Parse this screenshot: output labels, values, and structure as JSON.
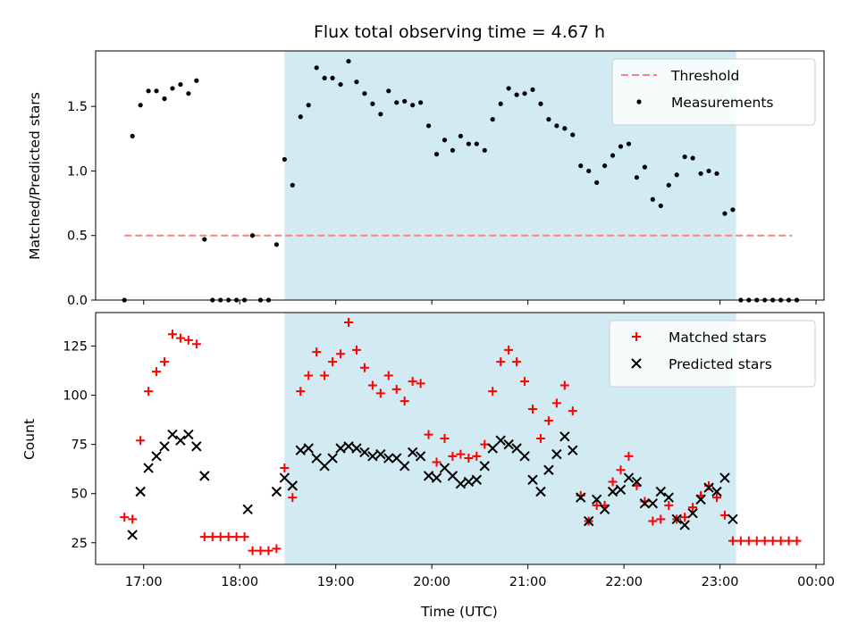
{
  "chart_data": [
    {
      "type": "scatter",
      "title": "Flux total observing time = 4.67 h",
      "ylabel": "Matched/Predicted stars",
      "xlabel": "",
      "xlim": [
        "16:30",
        "00:05"
      ],
      "ylim": [
        0,
        1.93
      ],
      "x_ticks": [
        "17:00",
        "18:00",
        "19:00",
        "20:00",
        "21:00",
        "22:00",
        "23:00",
        "00:00"
      ],
      "y_ticks": [
        "0.0",
        "0.5",
        "1.0",
        "1.5"
      ],
      "shaded_interval": [
        "18:28",
        "23:10"
      ],
      "shade_color": "#add8e6",
      "legend_position": "upper right",
      "threshold": {
        "name": "Threshold",
        "value": 0.5,
        "x_range": [
          "16:48",
          "23:45"
        ],
        "color": "#ff8080",
        "style": "dashed"
      },
      "series": [
        {
          "name": "Measurements",
          "marker": "dot",
          "color": "#000000",
          "points": [
            [
              "16:48",
              0.0
            ],
            [
              "16:53",
              1.27
            ],
            [
              "16:58",
              1.51
            ],
            [
              "17:03",
              1.62
            ],
            [
              "17:08",
              1.62
            ],
            [
              "17:13",
              1.56
            ],
            [
              "17:18",
              1.64
            ],
            [
              "17:23",
              1.67
            ],
            [
              "17:28",
              1.6
            ],
            [
              "17:33",
              1.7
            ],
            [
              "17:38",
              0.47
            ],
            [
              "17:43",
              0.0
            ],
            [
              "17:48",
              0.0
            ],
            [
              "17:53",
              0.0
            ],
            [
              "17:58",
              0.0
            ],
            [
              "18:03",
              0.0
            ],
            [
              "18:08",
              0.5
            ],
            [
              "18:13",
              0.0
            ],
            [
              "18:18",
              0.0
            ],
            [
              "18:23",
              0.43
            ],
            [
              "18:28",
              1.09
            ],
            [
              "18:33",
              0.89
            ],
            [
              "18:38",
              1.42
            ],
            [
              "18:43",
              1.51
            ],
            [
              "18:48",
              1.8
            ],
            [
              "18:53",
              1.72
            ],
            [
              "18:58",
              1.72
            ],
            [
              "19:03",
              1.67
            ],
            [
              "19:08",
              1.85
            ],
            [
              "19:13",
              1.69
            ],
            [
              "19:18",
              1.6
            ],
            [
              "19:23",
              1.52
            ],
            [
              "19:28",
              1.44
            ],
            [
              "19:33",
              1.62
            ],
            [
              "19:38",
              1.53
            ],
            [
              "19:43",
              1.54
            ],
            [
              "19:48",
              1.51
            ],
            [
              "19:53",
              1.53
            ],
            [
              "19:58",
              1.35
            ],
            [
              "20:03",
              1.13
            ],
            [
              "20:08",
              1.24
            ],
            [
              "20:13",
              1.16
            ],
            [
              "20:18",
              1.27
            ],
            [
              "20:23",
              1.21
            ],
            [
              "20:28",
              1.21
            ],
            [
              "20:33",
              1.16
            ],
            [
              "20:38",
              1.4
            ],
            [
              "20:43",
              1.52
            ],
            [
              "20:48",
              1.64
            ],
            [
              "20:53",
              1.59
            ],
            [
              "20:58",
              1.6
            ],
            [
              "21:03",
              1.63
            ],
            [
              "21:08",
              1.52
            ],
            [
              "21:13",
              1.4
            ],
            [
              "21:18",
              1.35
            ],
            [
              "21:23",
              1.33
            ],
            [
              "21:28",
              1.28
            ],
            [
              "21:33",
              1.04
            ],
            [
              "21:38",
              1.0
            ],
            [
              "21:43",
              0.91
            ],
            [
              "21:48",
              1.04
            ],
            [
              "21:53",
              1.12
            ],
            [
              "21:58",
              1.19
            ],
            [
              "22:03",
              1.21
            ],
            [
              "22:08",
              0.95
            ],
            [
              "22:13",
              1.03
            ],
            [
              "22:18",
              0.78
            ],
            [
              "22:23",
              0.73
            ],
            [
              "22:28",
              0.89
            ],
            [
              "22:33",
              0.97
            ],
            [
              "22:38",
              1.11
            ],
            [
              "22:43",
              1.1
            ],
            [
              "22:48",
              0.98
            ],
            [
              "22:53",
              1.0
            ],
            [
              "22:58",
              0.98
            ],
            [
              "23:03",
              0.67
            ],
            [
              "23:08",
              0.7
            ],
            [
              "23:13",
              0.0
            ],
            [
              "23:18",
              0.0
            ],
            [
              "23:23",
              0.0
            ],
            [
              "23:28",
              0.0
            ],
            [
              "23:33",
              0.0
            ],
            [
              "23:38",
              0.0
            ],
            [
              "23:43",
              0.0
            ],
            [
              "23:48",
              0.0
            ]
          ]
        }
      ]
    },
    {
      "type": "scatter",
      "xlabel": "Time (UTC)",
      "ylabel": "Count",
      "xlim": [
        "16:30",
        "00:05"
      ],
      "ylim": [
        14,
        142
      ],
      "x_ticks": [
        "17:00",
        "18:00",
        "19:00",
        "20:00",
        "21:00",
        "22:00",
        "23:00",
        "00:00"
      ],
      "y_ticks": [
        "25",
        "50",
        "75",
        "100",
        "125"
      ],
      "shaded_interval": [
        "18:28",
        "23:10"
      ],
      "shade_color": "#add8e6",
      "legend_position": "upper right",
      "series": [
        {
          "name": "Matched stars",
          "marker": "plus",
          "color": "#ff0000",
          "points": [
            [
              "16:48",
              38
            ],
            [
              "16:53",
              37
            ],
            [
              "16:58",
              77
            ],
            [
              "17:03",
              102
            ],
            [
              "17:08",
              112
            ],
            [
              "17:13",
              117
            ],
            [
              "17:18",
              131
            ],
            [
              "17:23",
              129
            ],
            [
              "17:28",
              128
            ],
            [
              "17:33",
              126
            ],
            [
              "17:38",
              28
            ],
            [
              "17:43",
              28
            ],
            [
              "17:48",
              28
            ],
            [
              "17:53",
              28
            ],
            [
              "17:58",
              28
            ],
            [
              "18:03",
              28
            ],
            [
              "18:08",
              21
            ],
            [
              "18:13",
              21
            ],
            [
              "18:18",
              21
            ],
            [
              "18:23",
              22
            ],
            [
              "18:28",
              63
            ],
            [
              "18:33",
              48
            ],
            [
              "18:38",
              102
            ],
            [
              "18:43",
              110
            ],
            [
              "18:48",
              122
            ],
            [
              "18:53",
              110
            ],
            [
              "18:58",
              117
            ],
            [
              "19:03",
              121
            ],
            [
              "19:08",
              137
            ],
            [
              "19:13",
              123
            ],
            [
              "19:18",
              114
            ],
            [
              "19:23",
              105
            ],
            [
              "19:28",
              101
            ],
            [
              "19:33",
              110
            ],
            [
              "19:38",
              103
            ],
            [
              "19:43",
              97
            ],
            [
              "19:48",
              107
            ],
            [
              "19:53",
              106
            ],
            [
              "19:58",
              80
            ],
            [
              "20:03",
              66
            ],
            [
              "20:08",
              78
            ],
            [
              "20:13",
              69
            ],
            [
              "20:18",
              70
            ],
            [
              "20:23",
              68
            ],
            [
              "20:28",
              69
            ],
            [
              "20:33",
              75
            ],
            [
              "20:38",
              102
            ],
            [
              "20:43",
              117
            ],
            [
              "20:48",
              123
            ],
            [
              "20:53",
              117
            ],
            [
              "20:58",
              107
            ],
            [
              "21:03",
              93
            ],
            [
              "21:08",
              78
            ],
            [
              "21:13",
              87
            ],
            [
              "21:18",
              96
            ],
            [
              "21:23",
              105
            ],
            [
              "21:28",
              92
            ],
            [
              "21:33",
              49
            ],
            [
              "21:38",
              36
            ],
            [
              "21:43",
              44
            ],
            [
              "21:48",
              44
            ],
            [
              "21:53",
              56
            ],
            [
              "21:58",
              62
            ],
            [
              "22:03",
              69
            ],
            [
              "22:08",
              54
            ],
            [
              "22:13",
              46
            ],
            [
              "22:18",
              36
            ],
            [
              "22:23",
              37
            ],
            [
              "22:28",
              44
            ],
            [
              "22:33",
              37
            ],
            [
              "22:38",
              38
            ],
            [
              "22:43",
              43
            ],
            [
              "22:48",
              49
            ],
            [
              "22:53",
              54
            ],
            [
              "22:58",
              48
            ],
            [
              "23:03",
              39
            ],
            [
              "23:08",
              26
            ],
            [
              "23:13",
              26
            ],
            [
              "23:18",
              26
            ],
            [
              "23:23",
              26
            ],
            [
              "23:28",
              26
            ],
            [
              "23:33",
              26
            ],
            [
              "23:38",
              26
            ],
            [
              "23:43",
              26
            ],
            [
              "23:48",
              26
            ]
          ]
        },
        {
          "name": "Predicted stars",
          "marker": "x",
          "color": "#000000",
          "points": [
            [
              "16:53",
              29
            ],
            [
              "16:58",
              51
            ],
            [
              "17:03",
              63
            ],
            [
              "17:08",
              69
            ],
            [
              "17:13",
              74
            ],
            [
              "17:18",
              80
            ],
            [
              "17:23",
              77
            ],
            [
              "17:28",
              80
            ],
            [
              "17:33",
              74
            ],
            [
              "17:38",
              59
            ],
            [
              "18:05",
              42
            ],
            [
              "18:23",
              51
            ],
            [
              "18:28",
              58
            ],
            [
              "18:33",
              54
            ],
            [
              "18:38",
              72
            ],
            [
              "18:43",
              73
            ],
            [
              "18:48",
              68
            ],
            [
              "18:53",
              64
            ],
            [
              "18:58",
              68
            ],
            [
              "19:03",
              73
            ],
            [
              "19:08",
              74
            ],
            [
              "19:13",
              73
            ],
            [
              "19:18",
              71
            ],
            [
              "19:23",
              69
            ],
            [
              "19:28",
              70
            ],
            [
              "19:33",
              68
            ],
            [
              "19:38",
              68
            ],
            [
              "19:43",
              64
            ],
            [
              "19:48",
              71
            ],
            [
              "19:53",
              69
            ],
            [
              "19:58",
              59
            ],
            [
              "20:03",
              58
            ],
            [
              "20:08",
              63
            ],
            [
              "20:13",
              59
            ],
            [
              "20:18",
              55
            ],
            [
              "20:23",
              56
            ],
            [
              "20:28",
              57
            ],
            [
              "20:33",
              64
            ],
            [
              "20:38",
              73
            ],
            [
              "20:43",
              77
            ],
            [
              "20:48",
              75
            ],
            [
              "20:53",
              73
            ],
            [
              "20:58",
              69
            ],
            [
              "21:03",
              57
            ],
            [
              "21:08",
              51
            ],
            [
              "21:13",
              62
            ],
            [
              "21:18",
              70
            ],
            [
              "21:23",
              79
            ],
            [
              "21:28",
              72
            ],
            [
              "21:33",
              48
            ],
            [
              "21:38",
              36
            ],
            [
              "21:43",
              47
            ],
            [
              "21:48",
              42
            ],
            [
              "21:53",
              51
            ],
            [
              "21:58",
              52
            ],
            [
              "22:03",
              58
            ],
            [
              "22:08",
              56
            ],
            [
              "22:13",
              45
            ],
            [
              "22:18",
              45
            ],
            [
              "22:23",
              51
            ],
            [
              "22:28",
              48
            ],
            [
              "22:33",
              37
            ],
            [
              "22:38",
              34
            ],
            [
              "22:43",
              40
            ],
            [
              "22:48",
              47
            ],
            [
              "22:53",
              53
            ],
            [
              "22:58",
              51
            ],
            [
              "23:03",
              58
            ],
            [
              "23:08",
              37
            ]
          ]
        }
      ]
    }
  ]
}
